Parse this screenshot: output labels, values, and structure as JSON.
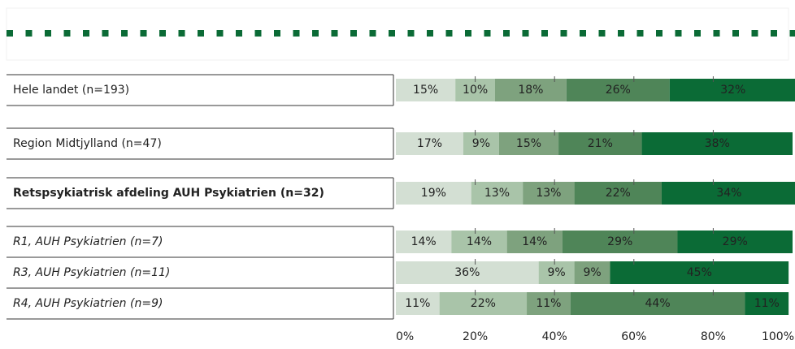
{
  "chart_data": {
    "type": "stacked_barh",
    "categories": [
      "Hele landet (n=193)",
      "Region Midtjylland (n=47)",
      "Retspsykiatrisk afdeling AUH Psykiatrien (n=32)",
      "R1, AUH Psykiatrien (n=7)",
      "R3, AUH Psykiatrien (n=11)",
      "R4, AUH Psykiatrien (n=9)"
    ],
    "label_styles": [
      "normal",
      "normal",
      "bold",
      "italic",
      "italic",
      "italic"
    ],
    "series": [
      {
        "color": "#d3dfd3",
        "values": [
          15,
          17,
          19,
          14,
          36,
          11
        ],
        "value_labels": [
          "15%",
          "17%",
          "19%",
          "14%",
          "36%",
          "11%"
        ]
      },
      {
        "color": "#a9c4a9",
        "values": [
          10,
          9,
          13,
          14,
          9,
          22
        ],
        "value_labels": [
          "10%",
          "9%",
          "13%",
          "14%",
          "9%",
          "22%"
        ]
      },
      {
        "color": "#7ea27e",
        "values": [
          18,
          15,
          13,
          14,
          9,
          11
        ],
        "value_labels": [
          "18%",
          "15%",
          "13%",
          "14%",
          "9%",
          "11%"
        ]
      },
      {
        "color": "#4f8558",
        "values": [
          26,
          21,
          22,
          29,
          null,
          44
        ],
        "value_labels": [
          "26%",
          "21%",
          "22%",
          "29%",
          null,
          "44%"
        ]
      },
      {
        "color": "#0b6b36",
        "values": [
          32,
          38,
          34,
          29,
          45,
          11
        ],
        "value_labels": [
          "32%",
          "38%",
          "34%",
          "29%",
          "45%",
          "11%"
        ]
      }
    ],
    "xlim": [
      0,
      100
    ],
    "xticks": [
      {
        "value": 0,
        "label": "0%"
      },
      {
        "value": 20,
        "label": "20%"
      },
      {
        "value": 40,
        "label": "40%"
      },
      {
        "value": 60,
        "label": "60%"
      },
      {
        "value": 80,
        "label": "80%"
      },
      {
        "value": 100,
        "label": "100%"
      }
    ]
  }
}
